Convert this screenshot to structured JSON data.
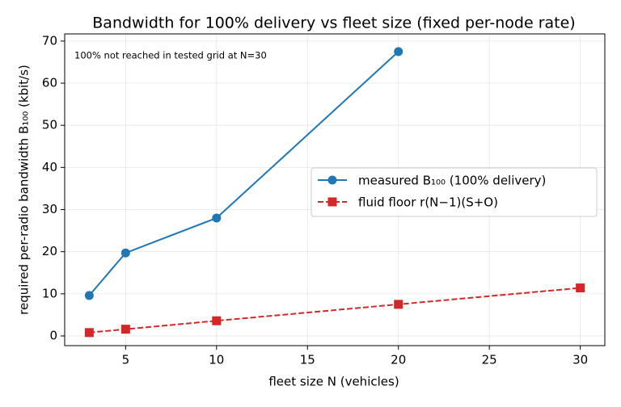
{
  "chart_data": {
    "type": "line",
    "title": "Bandwidth for 100% delivery vs fleet size (fixed per-node rate)",
    "xlabel": "fleet size N (vehicles)",
    "ylabel": "required per-radio bandwidth B₁₀₀ (kbit/s)",
    "annotation": "100% not reached in tested grid at N=30",
    "annotation_color": "#d62728",
    "series": [
      {
        "name": "measured B₁₀₀ (100% delivery)",
        "color": "#1f77b4",
        "linestyle": "solid",
        "marker": "circle",
        "x": [
          3,
          5,
          10,
          20
        ],
        "values": [
          9.6,
          19.7,
          28.0,
          67.5
        ]
      },
      {
        "name": "fluid floor r(N−1)(S+O)",
        "color": "#d62728",
        "linestyle": "dashed",
        "marker": "square",
        "x": [
          3,
          5,
          10,
          20,
          30
        ],
        "values": [
          0.8,
          1.6,
          3.6,
          7.5,
          11.4
        ]
      }
    ],
    "xlim": [
      1.65,
      31.35
    ],
    "xticks": [
      5,
      10,
      15,
      20,
      25,
      30
    ],
    "ylim": [
      -2.3,
      71.7
    ],
    "yticks": [
      0,
      10,
      20,
      30,
      40,
      50,
      60,
      70
    ],
    "grid": true,
    "legend": "center right"
  }
}
